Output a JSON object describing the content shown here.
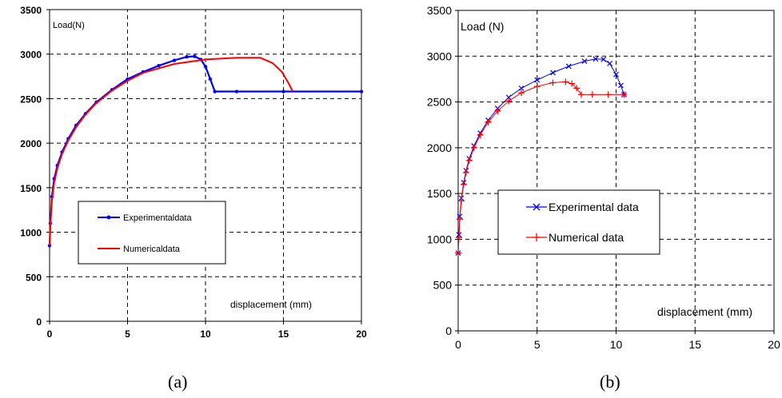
{
  "captions": [
    "(a)",
    "(b)"
  ],
  "chart_data": [
    {
      "type": "line",
      "panel": "(a)",
      "title": "",
      "xlabel": "displacement (mm)",
      "ylabel": "Load(N)",
      "xlim": [
        0,
        20
      ],
      "ylim": [
        0,
        3500
      ],
      "xticks": [
        0,
        5,
        10,
        15,
        20
      ],
      "yticks": [
        0,
        500,
        1000,
        1500,
        2000,
        2500,
        3000,
        3500
      ],
      "grid": true,
      "legend": "center-left",
      "colors": {
        "Experimental data": "#0000ff",
        "Numerical data": "#ff0000"
      },
      "series": [
        {
          "name": "Experimentaldata",
          "x": [
            0,
            0.05,
            0.15,
            0.3,
            0.5,
            0.8,
            1.2,
            1.7,
            2.3,
            3,
            4,
            5,
            6,
            7,
            8,
            8.8,
            9.3,
            9.7,
            10,
            10.3,
            10.6,
            12,
            15,
            20
          ],
          "y": [
            850,
            1100,
            1400,
            1600,
            1750,
            1900,
            2050,
            2200,
            2330,
            2460,
            2600,
            2720,
            2800,
            2870,
            2930,
            2970,
            2975,
            2940,
            2860,
            2720,
            2580,
            2580,
            2580,
            2580
          ]
        },
        {
          "name": "Numericaldata",
          "x": [
            0,
            0.05,
            0.15,
            0.3,
            0.5,
            0.8,
            1.2,
            1.7,
            2.3,
            3,
            4,
            5,
            6,
            8,
            10,
            12,
            13.5,
            14.3,
            14.9,
            15.3,
            15.6
          ],
          "y": [
            850,
            1080,
            1350,
            1560,
            1720,
            1880,
            2030,
            2180,
            2320,
            2450,
            2590,
            2700,
            2790,
            2890,
            2940,
            2960,
            2960,
            2900,
            2800,
            2680,
            2580
          ]
        }
      ]
    },
    {
      "type": "line",
      "panel": "(b)",
      "title": "",
      "xlabel": "displacement (mm)",
      "ylabel": "Load (N)",
      "xlim": [
        0,
        20
      ],
      "ylim": [
        0,
        3500
      ],
      "xticks": [
        0,
        5,
        10,
        15,
        20
      ],
      "yticks": [
        0,
        500,
        1000,
        1500,
        2000,
        2500,
        3000,
        3500
      ],
      "grid": true,
      "legend": "center-left",
      "colors": {
        "Experimental data": "#0000ff",
        "Numerical data": "#ff0000"
      },
      "series": [
        {
          "name": "Experimental data",
          "x": [
            0,
            0.05,
            0.1,
            0.2,
            0.35,
            0.5,
            0.7,
            1,
            1.4,
            1.9,
            2.5,
            3.2,
            4,
            5,
            6,
            7,
            8,
            8.7,
            9.2,
            9.6,
            10,
            10.3,
            10.5
          ],
          "y": [
            850,
            1050,
            1250,
            1450,
            1620,
            1750,
            1880,
            2020,
            2160,
            2300,
            2430,
            2550,
            2650,
            2740,
            2820,
            2890,
            2945,
            2970,
            2965,
            2920,
            2800,
            2680,
            2580
          ]
        },
        {
          "name": "Numerical data",
          "x": [
            0,
            0.05,
            0.1,
            0.2,
            0.35,
            0.5,
            0.7,
            1,
            1.4,
            1.9,
            2.5,
            3.2,
            4,
            5,
            6,
            6.8,
            7.2,
            7.5,
            7.8,
            8.5,
            9.5,
            10.5
          ],
          "y": [
            850,
            1020,
            1220,
            1420,
            1600,
            1730,
            1860,
            2000,
            2140,
            2280,
            2400,
            2510,
            2600,
            2670,
            2710,
            2720,
            2700,
            2650,
            2580,
            2580,
            2580,
            2580
          ]
        }
      ]
    }
  ]
}
